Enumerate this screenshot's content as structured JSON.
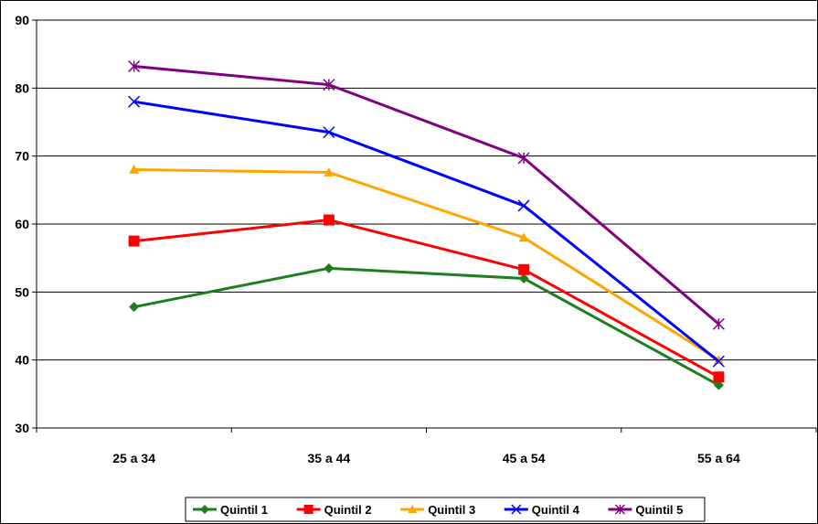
{
  "chart_data": {
    "type": "line",
    "title": "",
    "xlabel": "",
    "ylabel": "",
    "categories": [
      "25 a 34",
      "35 a 44",
      "45 a 54",
      "55 a 64"
    ],
    "ylim": [
      30,
      90
    ],
    "yticks": [
      "30",
      "40",
      "50",
      "60",
      "70",
      "80",
      "90"
    ],
    "grid": "horizontal",
    "legend": "bottom",
    "series": [
      {
        "name": "Quintil 1",
        "color": "#1e7d1e",
        "marker": "diamond",
        "values": [
          47.8,
          53.5,
          52.0,
          36.3
        ]
      },
      {
        "name": "Quintil 2",
        "color": "#ff0000",
        "marker": "square",
        "values": [
          57.5,
          60.6,
          53.3,
          37.5
        ]
      },
      {
        "name": "Quintil 3",
        "color": "#ffa500",
        "marker": "triangle",
        "values": [
          68.0,
          67.6,
          58.0,
          40.0
        ]
      },
      {
        "name": "Quintil 4",
        "color": "#0000ff",
        "marker": "x",
        "values": [
          78.0,
          73.5,
          62.7,
          39.8
        ]
      },
      {
        "name": "Quintil 5",
        "color": "#800080",
        "marker": "star",
        "values": [
          83.2,
          80.5,
          69.7,
          45.3
        ]
      }
    ]
  }
}
